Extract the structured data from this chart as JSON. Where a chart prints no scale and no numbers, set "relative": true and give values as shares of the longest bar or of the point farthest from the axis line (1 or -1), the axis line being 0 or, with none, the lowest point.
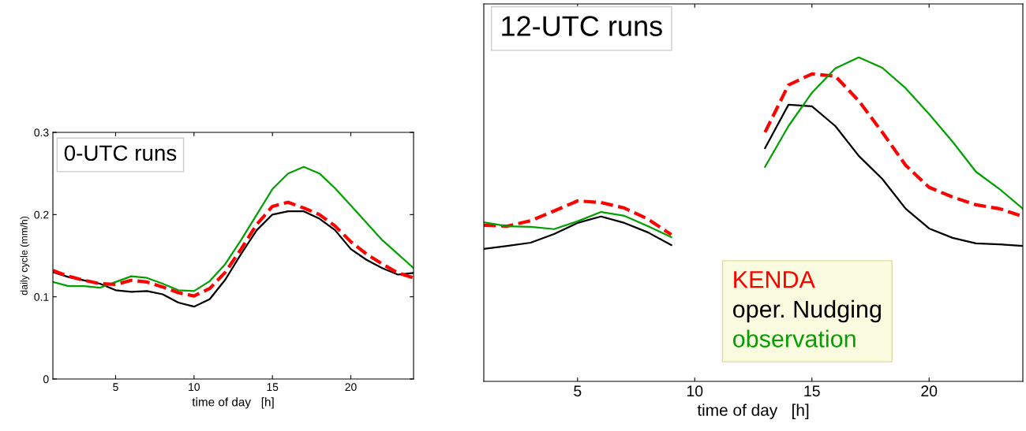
{
  "chart_data": [
    {
      "type": "line",
      "title": "0-UTC runs",
      "xlabel": "time of day   [h]",
      "ylabel": "daily cycle (mm/h)",
      "xlim": [
        1,
        24
      ],
      "xticks": [
        5,
        10,
        15,
        20
      ],
      "ylim": [
        0,
        0.3
      ],
      "yticks": [
        0,
        0.1,
        0.2,
        0.3
      ],
      "grid": false,
      "line_style": "solid",
      "x": [
        1,
        2,
        3,
        4,
        5,
        6,
        7,
        8,
        9,
        10,
        11,
        12,
        13,
        14,
        15,
        16,
        17,
        18,
        19,
        20,
        21,
        22,
        23,
        24
      ],
      "series": [
        {
          "color": "#000000",
          "values": [
            0.13,
            0.124,
            0.12,
            0.116,
            0.108,
            0.106,
            0.107,
            0.103,
            0.093,
            0.088,
            0.097,
            0.121,
            0.152,
            0.181,
            0.2,
            0.204,
            0.204,
            0.195,
            0.181,
            0.158,
            0.145,
            0.135,
            0.127,
            0.129
          ]
        },
        {
          "color": "#00a000",
          "values": [
            0.118,
            0.113,
            0.113,
            0.111,
            0.118,
            0.125,
            0.123,
            0.116,
            0.108,
            0.107,
            0.119,
            0.14,
            0.169,
            0.2,
            0.231,
            0.25,
            0.258,
            0.25,
            0.232,
            0.211,
            0.19,
            0.169,
            0.152,
            0.135
          ]
        },
        {
          "color": "#ff0000",
          "line_style": "dashed",
          "values": [
            0.132,
            0.125,
            0.12,
            0.116,
            0.115,
            0.12,
            0.118,
            0.112,
            0.105,
            0.101,
            0.11,
            0.13,
            0.158,
            0.188,
            0.21,
            0.215,
            0.208,
            0.2,
            0.186,
            0.167,
            0.152,
            0.14,
            0.129,
            0.123
          ]
        }
      ]
    },
    {
      "type": "line",
      "title": "12-UTC runs",
      "xlabel": "time of day   [h]",
      "xlim": [
        1,
        24
      ],
      "xticks": [
        5,
        10,
        15,
        20
      ],
      "relative": true,
      "tick_labels": "x",
      "grid": false,
      "legend": "bottom",
      "line_style": "solid",
      "x": [
        1,
        2,
        3,
        4,
        5,
        6,
        7,
        8,
        9,
        10,
        11,
        12,
        13,
        14,
        15,
        16,
        17,
        18,
        19,
        20,
        21,
        22,
        23,
        24
      ],
      "series": [
        {
          "name": "KENDA",
          "color": "#ff0000",
          "line_style": "dashed",
          "values": [
            0.482,
            0.479,
            0.496,
            0.526,
            0.557,
            0.552,
            0.535,
            0.501,
            0.453,
            null,
            null,
            null,
            0.769,
            0.915,
            0.949,
            0.942,
            0.866,
            0.769,
            0.667,
            0.599,
            0.569,
            0.545,
            0.533,
            0.509
          ]
        },
        {
          "name": "oper. Nudging",
          "color": "#000000",
          "values": [
            0.409,
            0.418,
            0.428,
            0.455,
            0.489,
            0.509,
            0.489,
            0.46,
            0.421,
            null,
            null,
            null,
            0.72,
            0.854,
            0.849,
            0.788,
            0.696,
            0.625,
            0.533,
            0.472,
            0.443,
            0.426,
            0.423,
            0.418
          ]
        },
        {
          "name": "observation",
          "color": "#00a000",
          "values": [
            0.491,
            0.479,
            0.477,
            0.47,
            0.494,
            0.523,
            0.511,
            0.479,
            0.445,
            null,
            null,
            null,
            0.662,
            0.788,
            0.891,
            0.966,
            1.0,
            0.968,
            0.905,
            0.825,
            0.74,
            0.647,
            0.594,
            0.533
          ]
        }
      ]
    }
  ]
}
